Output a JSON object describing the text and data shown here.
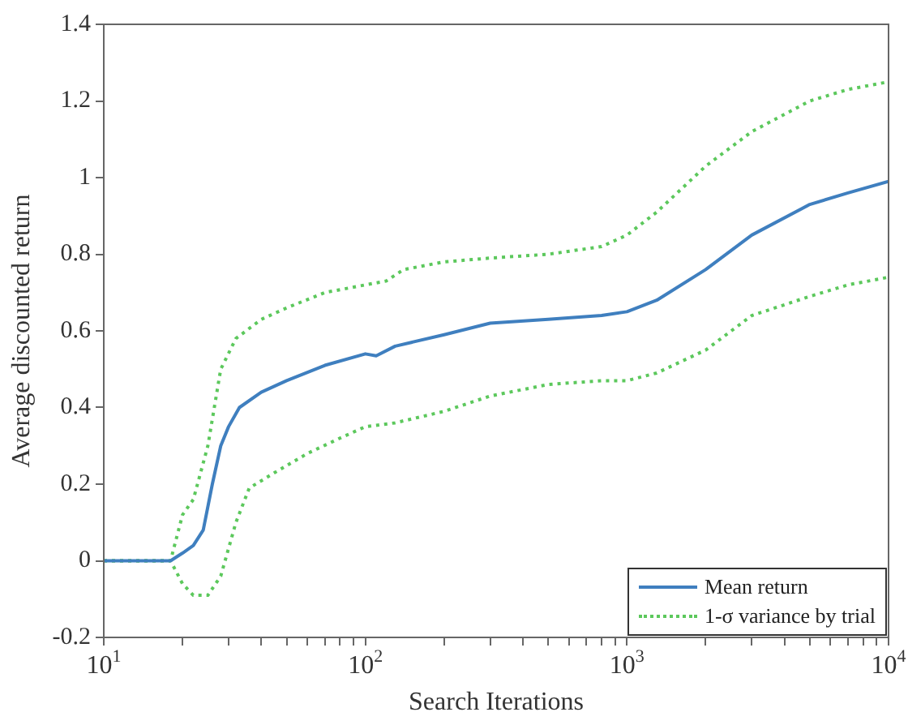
{
  "chart_data": {
    "type": "line",
    "xlabel": "Search Iterations",
    "ylabel": "Average discounted return",
    "log": "x",
    "grid": false,
    "legend": "bottom right",
    "marker": "none",
    "xlim": [
      10,
      10000
    ],
    "xticks": [
      {
        "value": 10,
        "label": "10$^{1}$"
      },
      {
        "value": 20,
        "label": null
      },
      {
        "value": 30,
        "label": null
      },
      {
        "value": 40,
        "label": null
      },
      {
        "value": 50,
        "label": null
      },
      {
        "value": 60,
        "label": null
      },
      {
        "value": 70,
        "label": null
      },
      {
        "value": 80,
        "label": null
      },
      {
        "value": 90,
        "label": null
      },
      {
        "value": 100,
        "label": "10$^{2}$"
      },
      {
        "value": 200,
        "label": null
      },
      {
        "value": 300,
        "label": null
      },
      {
        "value": 400,
        "label": null
      },
      {
        "value": 500,
        "label": null
      },
      {
        "value": 600,
        "label": null
      },
      {
        "value": 700,
        "label": null
      },
      {
        "value": 800,
        "label": null
      },
      {
        "value": 900,
        "label": null
      },
      {
        "value": 1000,
        "label": "10$^{3}$"
      },
      {
        "value": 2000,
        "label": null
      },
      {
        "value": 3000,
        "label": null
      },
      {
        "value": 4000,
        "label": null
      },
      {
        "value": 5000,
        "label": null
      },
      {
        "value": 6000,
        "label": null
      },
      {
        "value": 7000,
        "label": null
      },
      {
        "value": 8000,
        "label": null
      },
      {
        "value": 9000,
        "label": null
      },
      {
        "value": 10000,
        "label": "10$^{4}$"
      }
    ],
    "ylim": [
      -0.2,
      1.4
    ],
    "yticks": [
      -0.2,
      0,
      0.2,
      0.4,
      0.6,
      0.8,
      1,
      1.2,
      1.4
    ],
    "series": [
      {
        "name": "Mean return",
        "color": "#3f7fbf",
        "line_style": "solid",
        "x": [
          10,
          18,
          20,
          22,
          24,
          26,
          28,
          30,
          33,
          40,
          50,
          70,
          100,
          110,
          130,
          200,
          300,
          500,
          800,
          1000,
          1300,
          2000,
          3000,
          5000,
          7000,
          10000
        ],
        "values": [
          0,
          0,
          0.02,
          0.04,
          0.08,
          0.2,
          0.3,
          0.35,
          0.4,
          0.44,
          0.47,
          0.51,
          0.54,
          0.535,
          0.56,
          0.59,
          0.62,
          0.63,
          0.64,
          0.65,
          0.68,
          0.76,
          0.85,
          0.93,
          0.96,
          0.99
        ]
      },
      {
        "name": "1-σ variance by trial",
        "color": "#5cc85c",
        "line_style": "dotted",
        "x": [
          10,
          18,
          20,
          22,
          25,
          28,
          32,
          40,
          50,
          70,
          100,
          120,
          140,
          200,
          300,
          500,
          800,
          1000,
          1300,
          2000,
          3000,
          5000,
          7000,
          10000
        ],
        "values": [
          0,
          0,
          0.12,
          0.16,
          0.3,
          0.5,
          0.58,
          0.63,
          0.66,
          0.7,
          0.72,
          0.73,
          0.76,
          0.78,
          0.79,
          0.8,
          0.82,
          0.85,
          0.91,
          1.03,
          1.12,
          1.2,
          1.23,
          1.25
        ]
      },
      {
        "color": "#5cc85c",
        "line_style": "dotted",
        "x": [
          10,
          18,
          20,
          22,
          25,
          28,
          32,
          36,
          45,
          60,
          80,
          100,
          130,
          200,
          300,
          500,
          800,
          1000,
          1300,
          2000,
          3000,
          5000,
          7000,
          10000
        ],
        "values": [
          0,
          0,
          -0.06,
          -0.09,
          -0.09,
          -0.04,
          0.1,
          0.19,
          0.23,
          0.28,
          0.32,
          0.35,
          0.36,
          0.39,
          0.43,
          0.46,
          0.47,
          0.47,
          0.49,
          0.55,
          0.64,
          0.69,
          0.72,
          0.74
        ]
      }
    ]
  }
}
